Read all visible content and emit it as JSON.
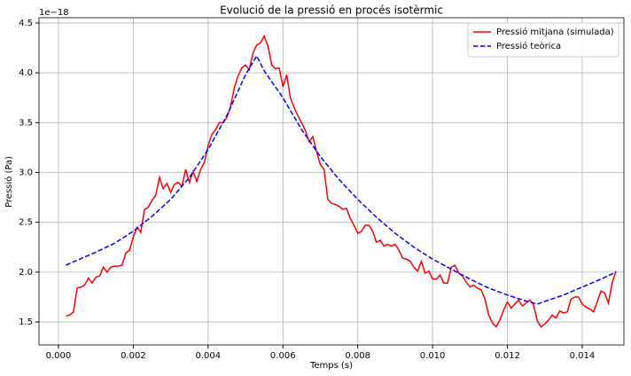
{
  "chart_data": {
    "type": "line",
    "title": "Evolució de la pressió en procés isotèrmic",
    "xlabel": "Temps (s)",
    "ylabel": "Pressió (Pa)",
    "y_offset_label": "1e−18",
    "xlim": [
      -0.00052,
      0.015114
    ],
    "ylim": [
      1.269,
      4.553
    ],
    "xticks": [
      {
        "value": 0,
        "label": "0.000"
      },
      {
        "value": 0.002,
        "label": "0.002"
      },
      {
        "value": 0.004,
        "label": "0.004"
      },
      {
        "value": 0.006,
        "label": "0.006"
      },
      {
        "value": 0.008,
        "label": "0.008"
      },
      {
        "value": 0.01,
        "label": "0.010"
      },
      {
        "value": 0.012,
        "label": "0.012"
      },
      {
        "value": 0.014,
        "label": "0.014"
      }
    ],
    "yticks": [
      1.5,
      {
        "value": 2,
        "label": "2.0"
      },
      2.5,
      {
        "value": 3,
        "label": "3.0"
      },
      3.5,
      {
        "value": 4,
        "label": "4.0"
      },
      4.5
    ],
    "grid": true,
    "legend": "upper right",
    "series": [
      {
        "name": "Pressió mitjana (simulada)",
        "color": "#ff0000",
        "dash": "solid",
        "x": [
          0.0002,
          0.0003,
          0.0004,
          0.0005,
          0.0006,
          0.0007,
          0.0008,
          0.0009,
          0.001,
          0.0011,
          0.0012,
          0.0013,
          0.0014,
          0.0015,
          0.0016,
          0.0017,
          0.0018,
          0.0019,
          0.002,
          0.0021,
          0.0022,
          0.0023,
          0.0024,
          0.0025,
          0.0026,
          0.0027,
          0.0028,
          0.0029,
          0.003,
          0.0031,
          0.0032,
          0.0033,
          0.0034,
          0.0035,
          0.0036,
          0.0037,
          0.0038,
          0.0039,
          0.004,
          0.0041,
          0.0042,
          0.0043,
          0.0044,
          0.0045,
          0.0046,
          0.0047,
          0.0048,
          0.0049,
          0.005,
          0.0051,
          0.0052,
          0.0053,
          0.0054,
          0.0055,
          0.0056,
          0.0057,
          0.0058,
          0.0059,
          0.006,
          0.0061,
          0.0062,
          0.0063,
          0.0064,
          0.0065,
          0.0066,
          0.0067,
          0.0068,
          0.0069,
          0.007,
          0.0071,
          0.0072,
          0.0073,
          0.0074,
          0.0075,
          0.0076,
          0.0077,
          0.0078,
          0.0079,
          0.008,
          0.0081,
          0.0082,
          0.0083,
          0.0084,
          0.0085,
          0.0086,
          0.0087,
          0.0088,
          0.0089,
          0.009,
          0.0091,
          0.0092,
          0.0093,
          0.0094,
          0.0095,
          0.0096,
          0.0097,
          0.0098,
          0.0099,
          0.01,
          0.0101,
          0.0102,
          0.0103,
          0.0104,
          0.0105,
          0.0106,
          0.0107,
          0.0108,
          0.0109,
          0.011,
          0.0111,
          0.0112,
          0.0113,
          0.0114,
          0.0115,
          0.0116,
          0.0117,
          0.0118,
          0.0119,
          0.012,
          0.0121,
          0.0122,
          0.0123,
          0.0124,
          0.0125,
          0.0126,
          0.0127,
          0.0128,
          0.0129,
          0.013,
          0.0131,
          0.0132,
          0.0133,
          0.0134,
          0.0135,
          0.0136,
          0.0137,
          0.0138,
          0.0139,
          0.014,
          0.0141,
          0.0142,
          0.0143,
          0.0144,
          0.0145,
          0.0146,
          0.0147,
          0.0148,
          0.0149
        ],
        "values": [
          1.56,
          1.57,
          1.6,
          1.84,
          1.85,
          1.87,
          1.94,
          1.89,
          1.95,
          1.96,
          2.05,
          2.0,
          2.05,
          2.06,
          2.06,
          2.07,
          2.19,
          2.22,
          2.35,
          2.45,
          2.4,
          2.63,
          2.65,
          2.72,
          2.77,
          2.95,
          2.84,
          2.89,
          2.8,
          2.88,
          2.9,
          2.86,
          3.03,
          2.9,
          3.01,
          2.91,
          3.03,
          3.1,
          3.27,
          3.38,
          3.43,
          3.5,
          3.5,
          3.55,
          3.66,
          3.85,
          3.97,
          4.05,
          4.08,
          4.03,
          4.2,
          4.28,
          4.3,
          4.37,
          4.27,
          4.08,
          4.04,
          4.05,
          3.86,
          3.98,
          3.75,
          3.65,
          3.57,
          3.5,
          3.42,
          3.31,
          3.36,
          3.21,
          3.08,
          3.03,
          2.73,
          2.69,
          2.68,
          2.66,
          2.63,
          2.64,
          2.54,
          2.47,
          2.39,
          2.41,
          2.47,
          2.47,
          2.41,
          2.3,
          2.32,
          2.26,
          2.28,
          2.26,
          2.28,
          2.22,
          2.14,
          2.13,
          2.11,
          2.05,
          2.01,
          2.11,
          1.99,
          2.01,
          1.93,
          1.93,
          1.97,
          1.89,
          1.89,
          2.05,
          2.07,
          1.99,
          1.96,
          1.9,
          1.85,
          1.87,
          1.84,
          1.82,
          1.73,
          1.57,
          1.49,
          1.45,
          1.52,
          1.62,
          1.7,
          1.64,
          1.68,
          1.72,
          1.66,
          1.69,
          1.72,
          1.67,
          1.51,
          1.45,
          1.48,
          1.52,
          1.57,
          1.54,
          1.61,
          1.59,
          1.6,
          1.73,
          1.75,
          1.75,
          1.68,
          1.65,
          1.63,
          1.6,
          1.7,
          1.81,
          1.79,
          1.69,
          1.89,
          2.01
        ]
      },
      {
        "name": "Pressió teòrica",
        "color": "#0000ff",
        "dash": "dashed",
        "x": [
          0.0002,
          0.001,
          0.0015,
          0.002,
          0.0025,
          0.003,
          0.0035,
          0.004,
          0.0045,
          0.005,
          0.0053,
          0.0055,
          0.006,
          0.0065,
          0.007,
          0.0075,
          0.008,
          0.0085,
          0.009,
          0.0095,
          0.01,
          0.0105,
          0.011,
          0.0115,
          0.012,
          0.0125,
          0.0128,
          0.0135,
          0.014,
          0.0145,
          0.0149
        ],
        "values": [
          2.07,
          2.2,
          2.29,
          2.41,
          2.56,
          2.73,
          2.95,
          3.23,
          3.57,
          3.98,
          4.17,
          4.02,
          3.75,
          3.43,
          3.16,
          2.93,
          2.73,
          2.55,
          2.39,
          2.25,
          2.13,
          2.03,
          1.93,
          1.84,
          1.77,
          1.71,
          1.68,
          1.77,
          1.85,
          1.93,
          2.0
        ]
      }
    ]
  }
}
